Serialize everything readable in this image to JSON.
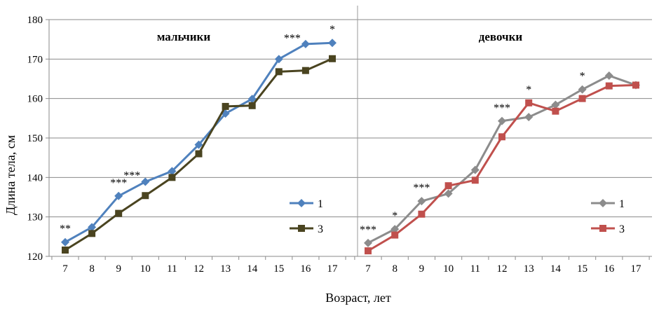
{
  "chart_data": [
    {
      "type": "line",
      "title": "мальчики",
      "x": [
        7,
        8,
        9,
        10,
        11,
        12,
        13,
        14,
        15,
        16,
        17
      ],
      "ylim": [
        120,
        180
      ],
      "yticks": [
        120,
        130,
        140,
        150,
        160,
        170,
        180
      ],
      "series": [
        {
          "name": "1",
          "color": "#4F81BD",
          "marker": "diamond",
          "values": [
            123.6,
            127.4,
            135.3,
            138.9,
            141.6,
            148.3,
            156.2,
            159.9,
            170.0,
            173.8,
            174.1
          ]
        },
        {
          "name": "3",
          "color": "#4A4420",
          "marker": "square",
          "values": [
            121.6,
            125.8,
            130.9,
            135.4,
            140.0,
            146.0,
            158.0,
            158.2,
            166.8,
            167.1,
            170.1
          ]
        }
      ],
      "annotations": [
        {
          "x": 7,
          "text": "**"
        },
        {
          "x": 9,
          "text": "***"
        },
        {
          "x": 9.5,
          "text": "***"
        },
        {
          "x": 15.5,
          "text": "***"
        },
        {
          "x": 17,
          "text": "*"
        }
      ],
      "grid": true
    },
    {
      "type": "line",
      "title": "девочки",
      "x": [
        7,
        8,
        9,
        10,
        11,
        12,
        13,
        14,
        15,
        16,
        17
      ],
      "ylim": [
        120,
        180
      ],
      "series": [
        {
          "name": "1",
          "color": "#8C8C8C",
          "marker": "diamond",
          "values": [
            123.4,
            126.9,
            134.0,
            135.9,
            141.9,
            154.3,
            155.3,
            158.4,
            162.3,
            165.8,
            163.4
          ]
        },
        {
          "name": "3",
          "color": "#C0504D",
          "marker": "square",
          "values": [
            121.4,
            125.4,
            130.7,
            137.9,
            139.3,
            150.3,
            158.9,
            156.8,
            160.0,
            163.2,
            163.4
          ]
        }
      ],
      "annotations": [
        {
          "x": 7,
          "text": "***"
        },
        {
          "x": 8,
          "text": "*"
        },
        {
          "x": 9,
          "text": "***"
        },
        {
          "x": 12,
          "text": "***"
        },
        {
          "x": 13,
          "text": "*"
        },
        {
          "x": 15,
          "text": "*"
        }
      ],
      "grid": true
    }
  ],
  "ylabel": "Длина тела, см",
  "xlabel": "Возраст, лет"
}
